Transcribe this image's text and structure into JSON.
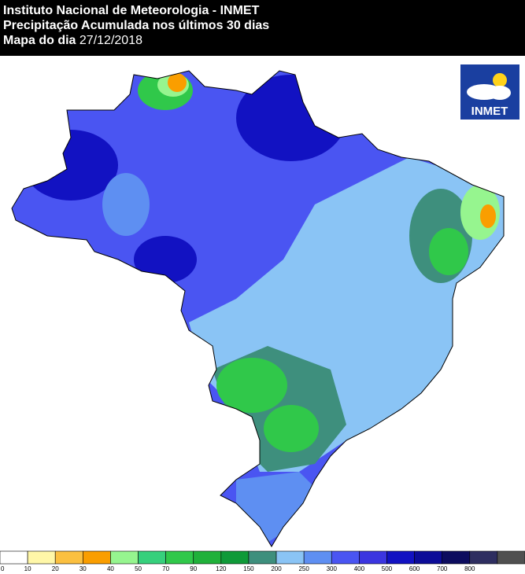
{
  "header": {
    "line1": "Instituto Nacional de Meteorologia - INMET",
    "line2": "Precipitação Acumulada nos últimos 30 dias",
    "line3_label": "Mapa do dia",
    "line3_date": "27/12/2018"
  },
  "logo": {
    "text": "INMET"
  },
  "legend": {
    "values": [
      0,
      10,
      20,
      30,
      40,
      50,
      70,
      90,
      120,
      150,
      200,
      250,
      300,
      400,
      500,
      600,
      700,
      800
    ],
    "colors": [
      "#ffffff",
      "#fff7a8",
      "#fbc040",
      "#fa9e00",
      "#96f58f",
      "#36d07c",
      "#30c84a",
      "#20b13a",
      "#0f9a38",
      "#3e8f7d",
      "#8ac4f5",
      "#5e8ff2",
      "#4a55f2",
      "#3b35e0",
      "#1212c2",
      "#0c0c98",
      "#0c0c5e",
      "#2e2e60",
      "#505050"
    ]
  }
}
